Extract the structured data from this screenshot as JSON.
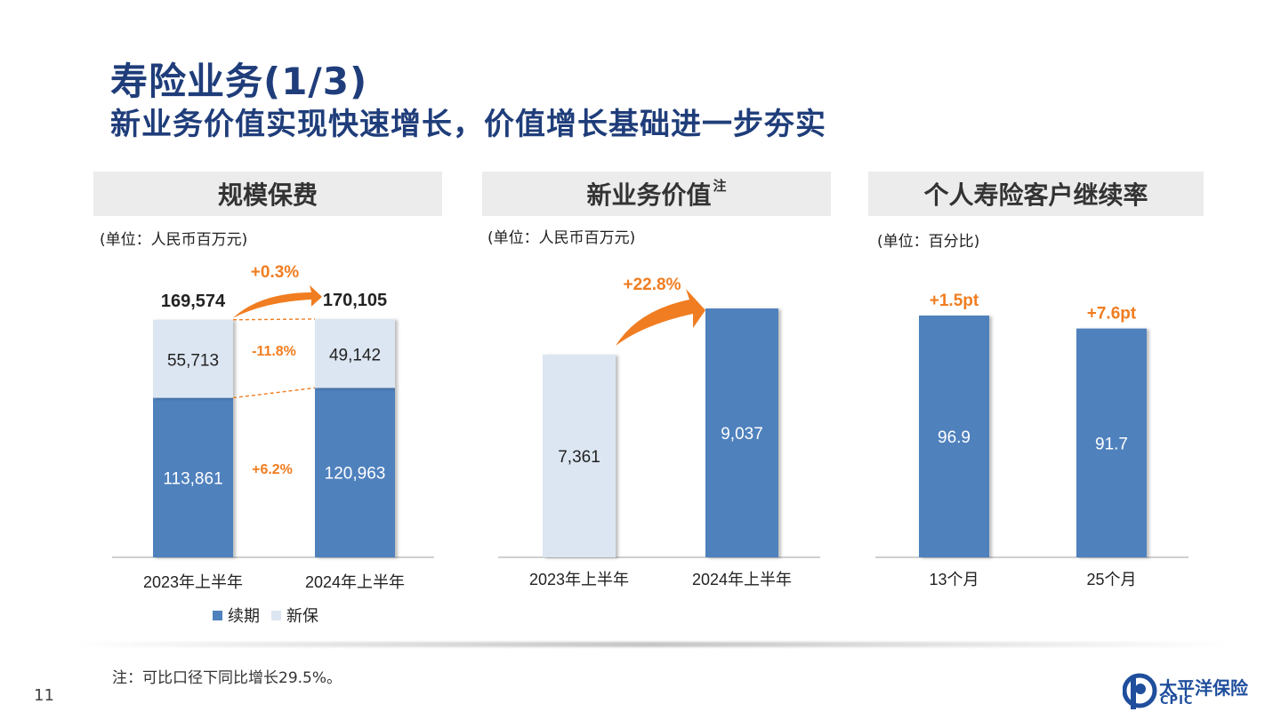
{
  "page": {
    "title": "寿险业务(1/3)",
    "subtitle": "新业务价值实现快速增长，价值增长基础进一步夯实",
    "note": "注：可比口径下同比增长29.5%。",
    "page_number": "11",
    "logo_cn": "太平洋保险",
    "logo_en": "CPIC"
  },
  "colors": {
    "title": "#1f3d7a",
    "dark_blue": "#4f81bd",
    "light_blue": "#dce6f2",
    "orange": "#f07d21",
    "header_bg": "#ececec"
  },
  "chart_data": [
    {
      "type": "bar",
      "stacked": true,
      "title": "规模保费",
      "unit": "(单位：人民币百万元)",
      "categories": [
        "2023年上半年",
        "2024年上半年"
      ],
      "series": [
        {
          "name": "续期",
          "values": [
            113861,
            120963
          ],
          "labels": [
            "113,861",
            "120,963"
          ]
        },
        {
          "name": "新保",
          "values": [
            55713,
            49142
          ],
          "labels": [
            "55,713",
            "49,142"
          ]
        }
      ],
      "totals": [
        "169,574",
        "170,105"
      ],
      "annotations": {
        "total_growth": "+0.3%",
        "series_growth": {
          "新保": "-11.8%",
          "续期": "+6.2%"
        }
      },
      "legend": [
        "续期",
        "新保"
      ],
      "legend_position": "bottom"
    },
    {
      "type": "bar",
      "title": "新业务价值",
      "title_note": "注",
      "unit": "(单位：人民币百万元)",
      "categories": [
        "2023年上半年",
        "2024年上半年"
      ],
      "values": [
        7361,
        9037
      ],
      "labels": [
        "7,361",
        "9,037"
      ],
      "annotations": {
        "growth": "+22.8%"
      }
    },
    {
      "type": "bar",
      "title": "个人寿险客户继续率",
      "unit": "(单位：百分比)",
      "categories": [
        "13个月",
        "25个月"
      ],
      "values": [
        96.9,
        91.7
      ],
      "labels": [
        "96.9",
        "91.7"
      ],
      "annotations": {
        "changes": [
          "+1.5pt",
          "+7.6pt"
        ]
      }
    }
  ]
}
